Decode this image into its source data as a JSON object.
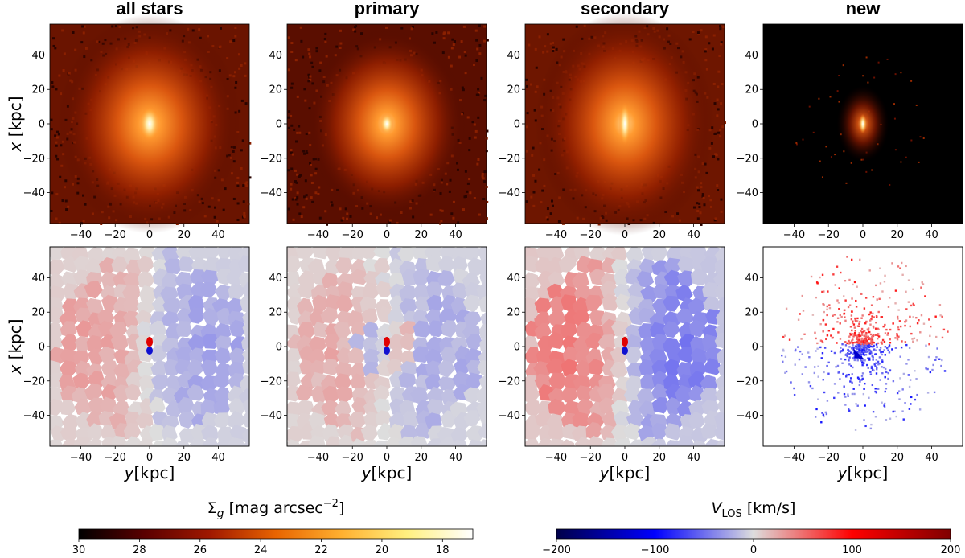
{
  "chart_data": {
    "type": "heatmap",
    "panel_titles": [
      "all stars",
      "primary",
      "secondary",
      "new"
    ],
    "row_1": {
      "quantity": "surface brightness map",
      "ylabel": "x [kpc]",
      "xticks": [
        -40,
        -20,
        0,
        20,
        40
      ],
      "yticks": [
        -40,
        -20,
        0,
        20,
        40
      ],
      "xlim": [
        -58,
        58
      ],
      "ylim": [
        -58,
        58
      ]
    },
    "row_2": {
      "quantity": "line-of-sight velocity map",
      "ylabel": "x [kpc]",
      "xlabel": "y[kpc]",
      "xticks": [
        -40,
        -20,
        0,
        20,
        40
      ],
      "yticks": [
        -40,
        -20,
        0,
        20,
        40
      ],
      "xlim": [
        -58,
        58
      ],
      "ylim": [
        -58,
        58
      ]
    },
    "axis_labels": {
      "x_symbol": "x",
      "x_unit": " [kpc]",
      "y_symbol": "y",
      "y_unit": "[kpc]"
    },
    "colorbar_brightness": {
      "label_symbol": "Σ",
      "label_sub": "g",
      "label_unit": " [mag arcsec",
      "label_exp": "−2",
      "label_close": "]",
      "range": [
        30,
        17
      ],
      "ticks": [
        30,
        28,
        26,
        24,
        22,
        20,
        18
      ],
      "colors": [
        "#000000",
        "#5a0000",
        "#a01800",
        "#e86400",
        "#ffb030",
        "#fff080",
        "#ffffff"
      ]
    },
    "colorbar_velocity": {
      "label_symbol": "V",
      "label_sub": "LOS",
      "label_unit": " [km/s]",
      "range": [
        -200,
        200
      ],
      "tick_labels": [
        "−200",
        "−100",
        "0",
        "100",
        "200"
      ],
      "ticks": [
        -200,
        -100,
        0,
        100,
        200
      ],
      "colors": [
        "#00004a",
        "#0000ff",
        "#dddddd",
        "#ff0000",
        "#800000"
      ]
    }
  }
}
